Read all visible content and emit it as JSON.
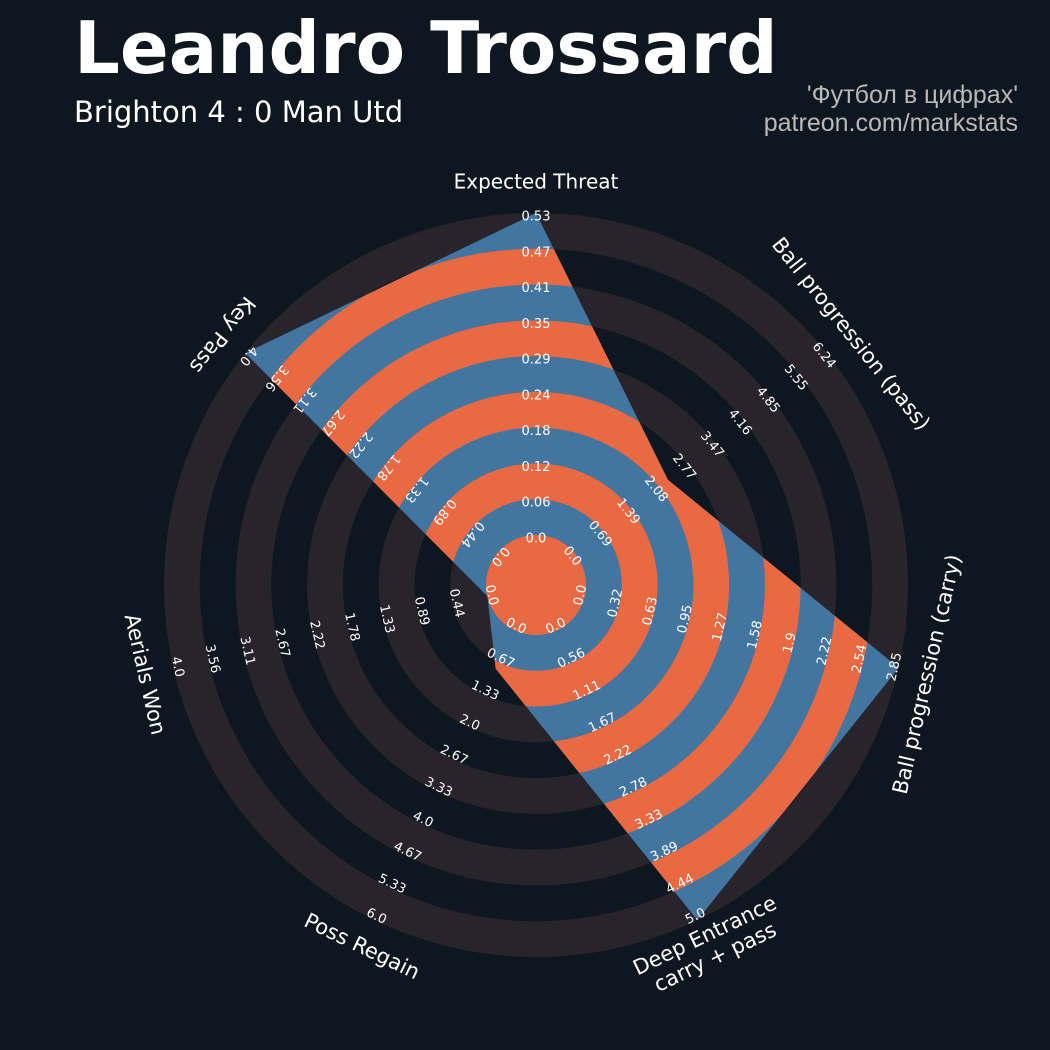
{
  "header": {
    "title": "Leandro Trossard",
    "subtitle": "Brighton 4 : 0 Man Utd",
    "credit_line1": "'Футбол в цифрах'",
    "credit_line2": "patreon.com/markstats"
  },
  "colors": {
    "background": "#0e1720",
    "ring_dark": "#28242b",
    "player_fill": "#4275a0",
    "player_ring": "#e86942",
    "text": "#ffffff"
  },
  "chart_data": {
    "type": "radar",
    "title": "Leandro Trossard",
    "subtitle": "Brighton 4 : 0 Man Utd",
    "axes": [
      {
        "label": "Expected Threat",
        "value": 0.53,
        "max": 0.53,
        "ticks": [
          "0.0",
          "0.06",
          "0.12",
          "0.18",
          "0.24",
          "0.29",
          "0.35",
          "0.41",
          "0.47",
          "0.53"
        ]
      },
      {
        "label": "Ball progression (pass)",
        "value": 2.3,
        "max": 6.24,
        "ticks": [
          "0.0",
          "0.69",
          "1.39",
          "2.08",
          "2.77",
          "3.47",
          "4.16",
          "4.85",
          "5.55",
          "6.24"
        ]
      },
      {
        "label": "Ball progression (carry)",
        "value": 2.85,
        "max": 2.85,
        "ticks": [
          "0.0",
          "0.32",
          "0.63",
          "0.95",
          "1.27",
          "1.58",
          "1.9",
          "2.22",
          "2.54",
          "2.85"
        ]
      },
      {
        "label": "Deep Entrance\ncarry + pass",
        "value": 5.0,
        "max": 5.0,
        "ticks": [
          "0.0",
          "0.56",
          "1.11",
          "1.67",
          "2.22",
          "2.78",
          "3.33",
          "3.89",
          "4.44",
          "5.0"
        ]
      },
      {
        "label": "Poss Regain",
        "value": 0.8,
        "max": 6.0,
        "ticks": [
          "0.0",
          "0.67",
          "1.33",
          "2.0",
          "2.67",
          "3.33",
          "4.0",
          "4.67",
          "5.33",
          "6.0"
        ]
      },
      {
        "label": "Aerials Won",
        "value": 0.0,
        "max": 4.0,
        "ticks": [
          "0.0",
          "0.44",
          "0.89",
          "1.33",
          "1.78",
          "2.22",
          "2.67",
          "3.11",
          "3.56",
          "4.0"
        ]
      },
      {
        "label": "Key Pass",
        "value": 4.0,
        "max": 4.0,
        "ticks": [
          "0.0",
          "0.44",
          "0.89",
          "1.33",
          "1.78",
          "2.22",
          "2.67",
          "3.11",
          "3.56",
          "4.0"
        ]
      }
    ],
    "ring_count": 10
  }
}
